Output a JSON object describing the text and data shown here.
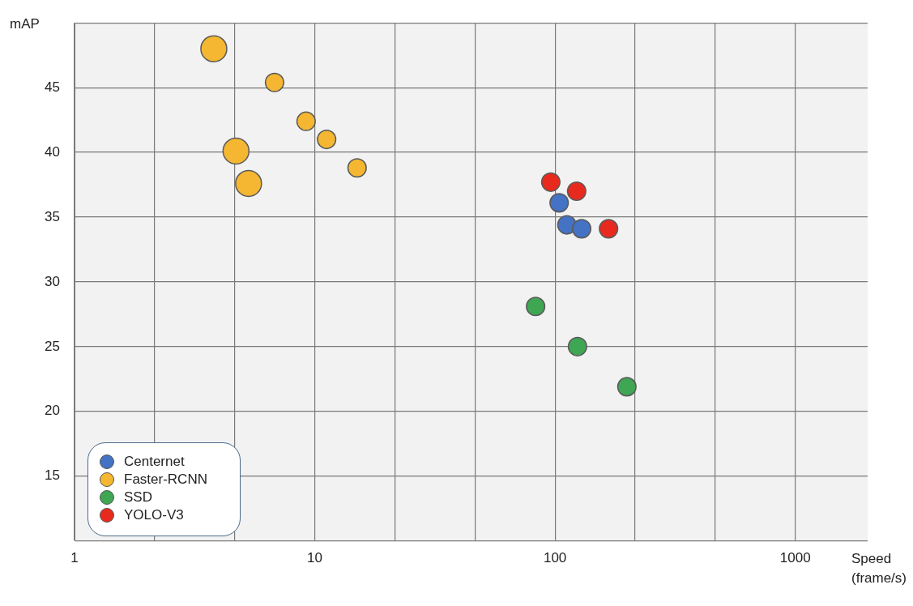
{
  "chart_data": {
    "type": "bubble",
    "xlabel": "Speed (frame/s)",
    "ylabel": "mAP",
    "log": "x",
    "grid": true,
    "legend": "bottom left",
    "marker": "circle",
    "xlim": [
      1,
      2000
    ],
    "xticks": [
      1,
      {
        "value": 2.154,
        "label": null
      },
      {
        "value": 4.642,
        "label": null
      },
      10,
      {
        "value": 21.54,
        "label": null
      },
      {
        "value": 46.42,
        "label": null
      },
      100,
      {
        "value": 215.4,
        "label": null
      },
      {
        "value": 464.2,
        "label": null
      },
      1000
    ],
    "ylim": [
      10,
      50
    ],
    "yticks": [
      {
        "value": 10,
        "label": null
      },
      15,
      20,
      25,
      30,
      35,
      40,
      45,
      {
        "value": 50,
        "label": null
      }
    ],
    "series": [
      {
        "name": "Centernet",
        "color": "#4472c4",
        "x": [
          104,
          112,
          129
        ],
        "values": [
          36.1,
          34.4,
          34.1
        ],
        "sizes": [
          0.5,
          0.5,
          0.5
        ]
      },
      {
        "name": "Faster-RCNN",
        "color": "#f5b731",
        "x": [
          3.8,
          6.8,
          9.2,
          11.2,
          15,
          4.7,
          5.3
        ],
        "values": [
          48.0,
          45.4,
          42.4,
          41.0,
          38.8,
          40.1,
          37.6
        ],
        "sizes": [
          1,
          0.5,
          0.5,
          0.5,
          0.5,
          1,
          1
        ]
      },
      {
        "name": "SSD",
        "color": "#3fa654",
        "x": [
          83,
          124,
          199
        ],
        "values": [
          28.1,
          25.0,
          21.9
        ],
        "sizes": [
          0.5,
          0.5,
          0.5
        ]
      },
      {
        "name": "YOLO-V3",
        "color": "#e82a1e",
        "x": [
          96,
          123,
          167
        ],
        "values": [
          37.7,
          37.0,
          34.1
        ],
        "sizes": [
          0.5,
          0.5,
          0.5
        ]
      }
    ]
  }
}
